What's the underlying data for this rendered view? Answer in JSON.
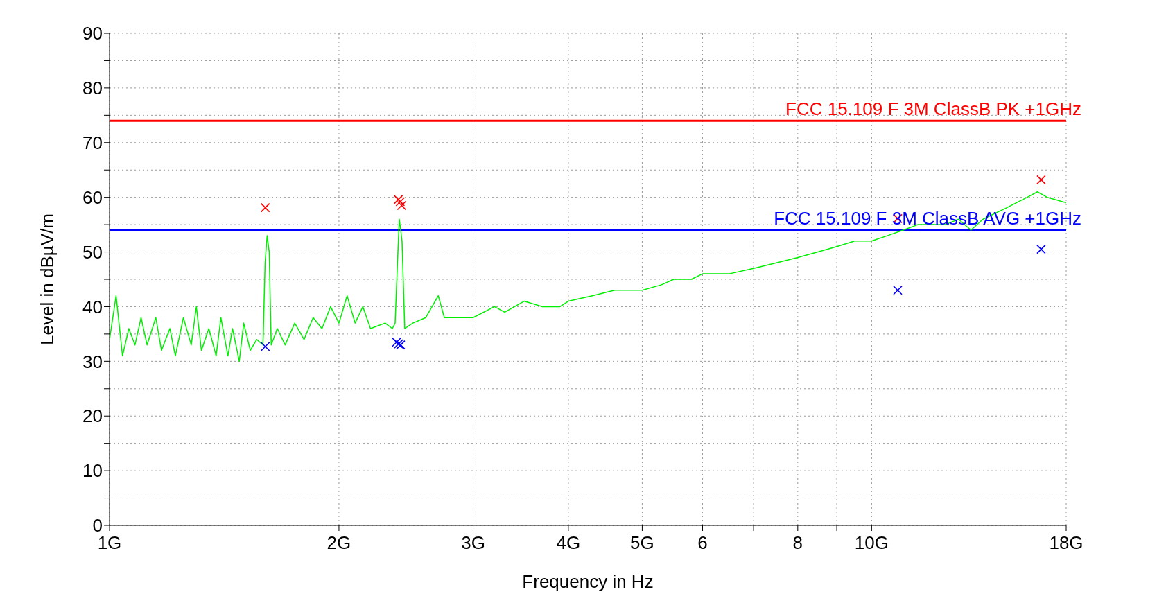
{
  "chart_data": {
    "type": "line",
    "xlabel": "Frequency in Hz",
    "ylabel": "Level in dBµV/m",
    "log": "x",
    "xlim": [
      1,
      18
    ],
    "xticks": [
      {
        "value": 1,
        "label": "1G"
      },
      {
        "value": 2,
        "label": "2G"
      },
      {
        "value": 3,
        "label": "3G"
      },
      {
        "value": 4,
        "label": "4G"
      },
      {
        "value": 5,
        "label": "5G"
      },
      6,
      {
        "value": 7,
        "label": null
      },
      8,
      {
        "value": 9,
        "label": null
      },
      {
        "value": 10,
        "label": "10G"
      },
      {
        "value": 18,
        "label": "18G"
      }
    ],
    "ylim": [
      0,
      90
    ],
    "yticks": [
      0,
      {
        "value": 5,
        "label": null
      },
      10,
      {
        "value": 15,
        "label": null
      },
      20,
      {
        "value": 25,
        "label": null
      },
      30,
      {
        "value": 35,
        "label": null
      },
      40,
      {
        "value": 45,
        "label": null
      },
      50,
      {
        "value": 55,
        "label": null
      },
      60,
      {
        "value": 65,
        "label": null
      },
      70,
      {
        "value": 75,
        "label": null
      },
      80,
      {
        "value": 85,
        "label": null
      },
      90
    ],
    "grid": true,
    "line_style": "solid",
    "ref_lines": [
      {
        "axis": "y",
        "value": 74,
        "label": "FCC 15.109 F 3M ClassB  PK +1GHz",
        "color": "#ff0000"
      },
      {
        "axis": "y",
        "value": 54,
        "label": "FCC 15.109 F 3M ClassB AVG +1GHz",
        "color": "#0000ff"
      }
    ],
    "series": [
      {
        "color": "#00ee00",
        "marker": "none",
        "x": [
          1,
          1.02,
          1.04,
          1.06,
          1.08,
          1.1,
          1.12,
          1.15,
          1.17,
          1.2,
          1.22,
          1.25,
          1.28,
          1.3,
          1.32,
          1.35,
          1.38,
          1.4,
          1.43,
          1.45,
          1.48,
          1.5,
          1.53,
          1.56,
          1.59,
          1.6,
          1.61,
          1.62,
          1.63,
          1.66,
          1.7,
          1.75,
          1.8,
          1.85,
          1.9,
          1.95,
          2,
          2.05,
          2.1,
          2.15,
          2.2,
          2.3,
          2.35,
          2.37,
          2.39,
          2.4,
          2.42,
          2.44,
          2.5,
          2.6,
          2.7,
          2.75,
          2.9,
          3,
          3.2,
          3.3,
          3.5,
          3.7,
          3.9,
          4,
          4.3,
          4.6,
          5,
          5.3,
          5.5,
          5.8,
          6,
          6.5,
          7,
          7.5,
          8,
          8.5,
          9,
          9.5,
          10,
          10.5,
          11,
          11.5,
          12,
          12.5,
          13,
          13.5,
          14,
          15,
          16,
          16.5,
          17,
          18
        ],
        "values": [
          34,
          42,
          31,
          36,
          33,
          38,
          33,
          38,
          32,
          36,
          31,
          38,
          33,
          40,
          32,
          36,
          31,
          38,
          31,
          36,
          30,
          37,
          32,
          34,
          33,
          48,
          53,
          50,
          33,
          36,
          33,
          37,
          34,
          38,
          36,
          40,
          37,
          42,
          37,
          40,
          36,
          37,
          36,
          37,
          50,
          56,
          52,
          36,
          37,
          38,
          42,
          38,
          38,
          38,
          40,
          39,
          41,
          40,
          40,
          41,
          42,
          43,
          43,
          44,
          45,
          45,
          46,
          46,
          47,
          48,
          49,
          50,
          51,
          52,
          52,
          53,
          54,
          55,
          55,
          55,
          56,
          54,
          56,
          58,
          60,
          61,
          60,
          59
        ]
      },
      {
        "type": "scatter",
        "color": "#ff0000",
        "marker": "cross",
        "x": [
          1.601,
          2.393,
          2.407,
          2.417,
          10.82,
          16.69
        ],
        "values": [
          58.1,
          59.6,
          59.2,
          58.5,
          56.1,
          63.2
        ]
      },
      {
        "type": "scatter",
        "color": "#0000ff",
        "marker": "cross",
        "x": [
          1.601,
          2.38,
          2.395,
          2.41,
          10.82,
          16.69
        ],
        "values": [
          32.7,
          33.5,
          33.2,
          33.0,
          43.0,
          50.5
        ]
      }
    ]
  }
}
